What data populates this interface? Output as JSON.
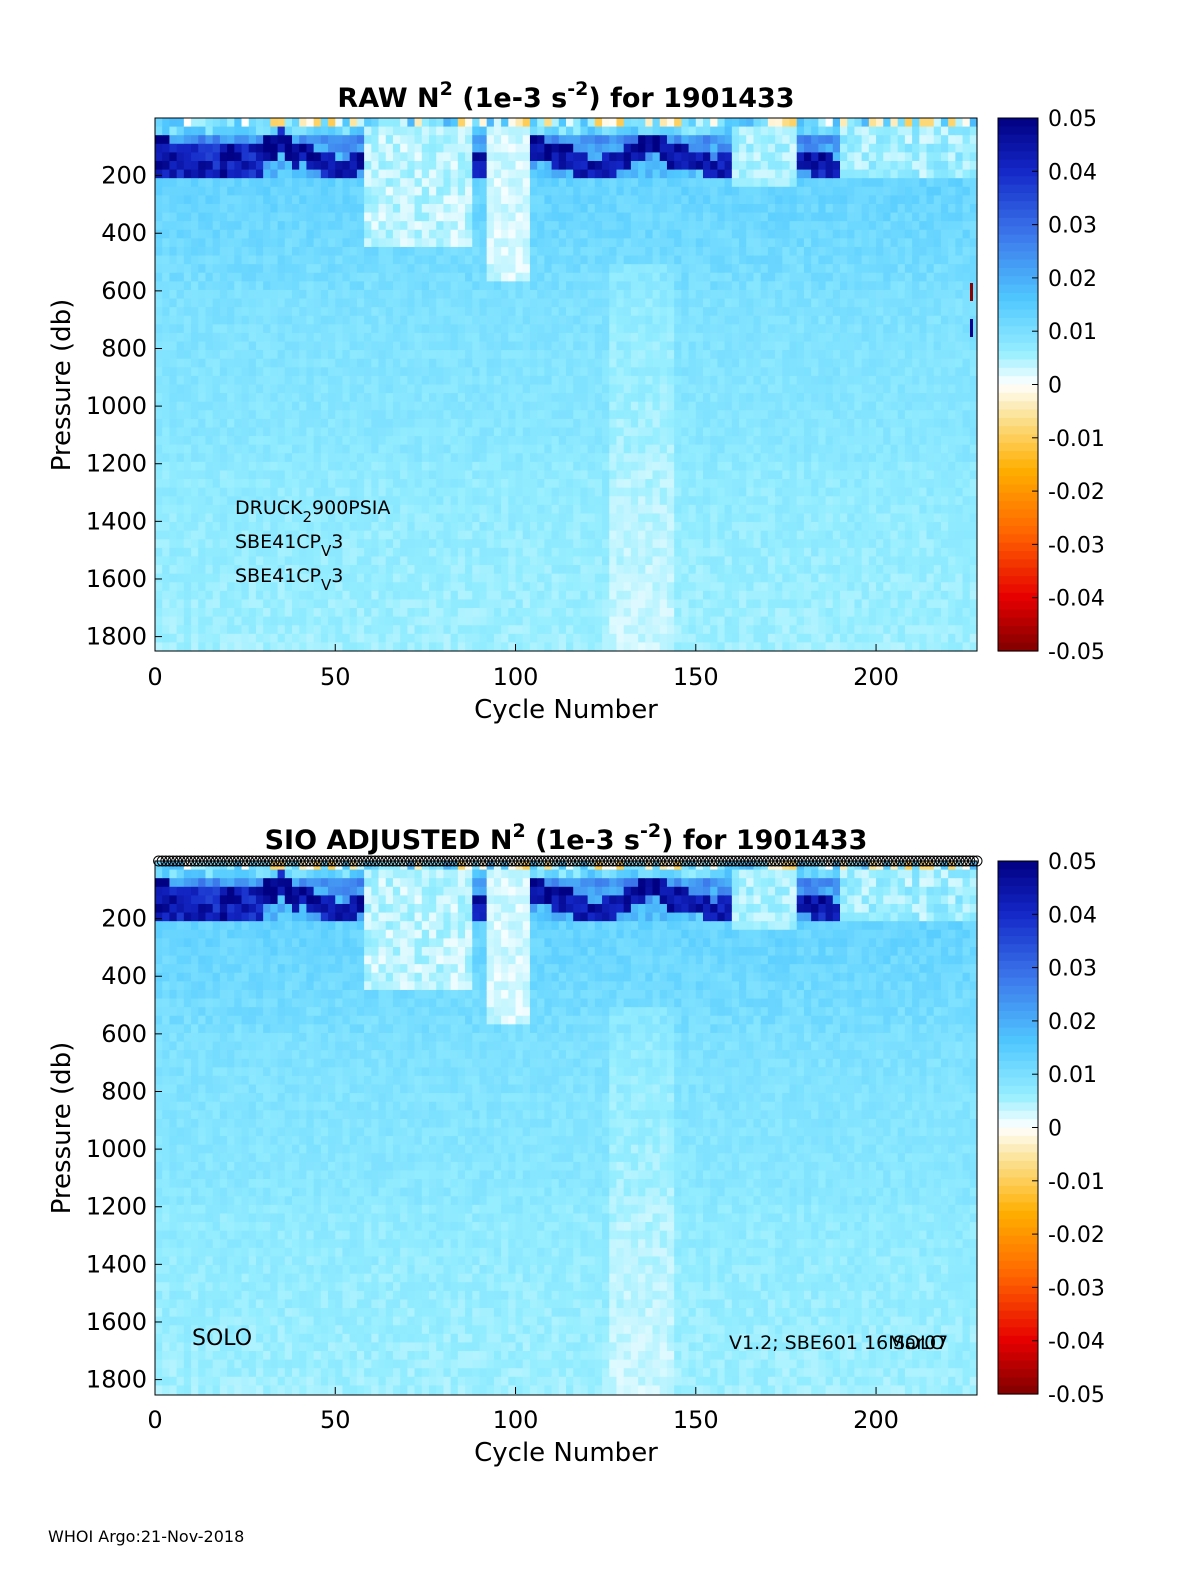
{
  "footer": "WHOI Argo:21-Nov-2018",
  "chart_data": [
    {
      "type": "heatmap",
      "title_main": "RAW N",
      "title_sup1": "2",
      "title_mid": " (1e-3 s",
      "title_sup2": "-2",
      "title_end": ") for 1901433",
      "xlabel": "Cycle Number",
      "ylabel": "Pressure (db)",
      "xlim": [
        0,
        228
      ],
      "ylim": [
        0,
        1850
      ],
      "y_reversed": true,
      "xticks": [
        "0",
        "50",
        "100",
        "150",
        "200"
      ],
      "yticks": [
        "200",
        "400",
        "600",
        "800",
        "1000",
        "1200",
        "1400",
        "1600",
        "1800"
      ],
      "colorbar": {
        "range": [
          -0.05,
          0.05
        ],
        "ticks": [
          "0.05",
          "0.04",
          "0.03",
          "0.02",
          "0.01",
          "0",
          "-0.01",
          "-0.02",
          "-0.03",
          "-0.04",
          "-0.05"
        ],
        "colormap": "jet-white-center"
      },
      "sensor_notes": [
        {
          "base": "DRUCK",
          "sub": "2",
          "rest": "900PSIA"
        },
        {
          "base": "SBE41CP",
          "sub": "V",
          "rest": "3"
        },
        {
          "base": "SBE41CP",
          "sub": "V",
          "rest": "3"
        }
      ]
    },
    {
      "type": "heatmap",
      "title_main": "SIO  ADJUSTED N",
      "title_sup1": "2",
      "title_mid": " (1e-3 s",
      "title_sup2": "-2",
      "title_end": ") for 1901433",
      "xlabel": "Cycle Number",
      "ylabel": "Pressure (db)",
      "xlim": [
        0,
        228
      ],
      "ylim": [
        0,
        1850
      ],
      "y_reversed": true,
      "xticks": [
        "0",
        "50",
        "100",
        "150",
        "200"
      ],
      "yticks": [
        "200",
        "400",
        "600",
        "800",
        "1000",
        "1200",
        "1400",
        "1600",
        "1800"
      ],
      "colorbar": {
        "range": [
          -0.05,
          0.05
        ],
        "ticks": [
          "0.05",
          "0.04",
          "0.03",
          "0.02",
          "0.01",
          "0",
          "-0.01",
          "-0.02",
          "-0.03",
          "-0.04",
          "-0.05"
        ],
        "colormap": "jet-white-center"
      },
      "annotation_left": "SOLO",
      "annotation_right": "V1.2; SBE601 16Mar07",
      "annotation_overlap": "SOLO",
      "top_markers": "circles"
    }
  ]
}
